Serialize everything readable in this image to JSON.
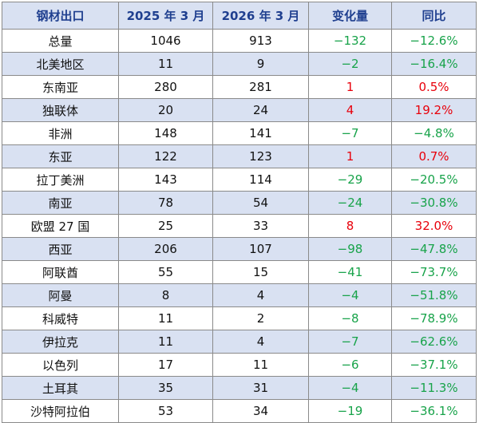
{
  "headers": [
    "钢材出口",
    "2025 年 3 月",
    "2026 年 3 月",
    "变化量",
    "同比"
  ],
  "colors": {
    "header_bg": "#d9e1f2",
    "header_text": "#1f3f8f",
    "alt_row_bg": "#d9e1f2",
    "increase": "#e8000b",
    "decrease": "#18a34a"
  },
  "rows": [
    {
      "region": "总量",
      "mar_2025": "1046",
      "mar_2026": "913",
      "change": "−132",
      "yoy": "−12.6%",
      "trend": "neg"
    },
    {
      "region": "北美地区",
      "mar_2025": "11",
      "mar_2026": "9",
      "change": "−2",
      "yoy": "−16.4%",
      "trend": "neg"
    },
    {
      "region": "东南亚",
      "mar_2025": "280",
      "mar_2026": "281",
      "change": "1",
      "yoy": "0.5%",
      "trend": "pos"
    },
    {
      "region": "独联体",
      "mar_2025": "20",
      "mar_2026": "24",
      "change": "4",
      "yoy": "19.2%",
      "trend": "pos"
    },
    {
      "region": "非洲",
      "mar_2025": "148",
      "mar_2026": "141",
      "change": "−7",
      "yoy": "−4.8%",
      "trend": "neg"
    },
    {
      "region": "东亚",
      "mar_2025": "122",
      "mar_2026": "123",
      "change": "1",
      "yoy": "0.7%",
      "trend": "pos"
    },
    {
      "region": "拉丁美洲",
      "mar_2025": "143",
      "mar_2026": "114",
      "change": "−29",
      "yoy": "−20.5%",
      "trend": "neg"
    },
    {
      "region": "南亚",
      "mar_2025": "78",
      "mar_2026": "54",
      "change": "−24",
      "yoy": "−30.8%",
      "trend": "neg"
    },
    {
      "region": "欧盟 27 国",
      "mar_2025": "25",
      "mar_2026": "33",
      "change": "8",
      "yoy": "32.0%",
      "trend": "pos"
    },
    {
      "region": "西亚",
      "mar_2025": "206",
      "mar_2026": "107",
      "change": "−98",
      "yoy": "−47.8%",
      "trend": "neg"
    },
    {
      "region": "阿联酋",
      "mar_2025": "55",
      "mar_2026": "15",
      "change": "−41",
      "yoy": "−73.7%",
      "trend": "neg"
    },
    {
      "region": "阿曼",
      "mar_2025": "8",
      "mar_2026": "4",
      "change": "−4",
      "yoy": "−51.8%",
      "trend": "neg"
    },
    {
      "region": "科威特",
      "mar_2025": "11",
      "mar_2026": "2",
      "change": "−8",
      "yoy": "−78.9%",
      "trend": "neg"
    },
    {
      "region": "伊拉克",
      "mar_2025": "11",
      "mar_2026": "4",
      "change": "−7",
      "yoy": "−62.6%",
      "trend": "neg"
    },
    {
      "region": "以色列",
      "mar_2025": "17",
      "mar_2026": "11",
      "change": "−6",
      "yoy": "−37.1%",
      "trend": "neg"
    },
    {
      "region": "土耳其",
      "mar_2025": "35",
      "mar_2026": "31",
      "change": "−4",
      "yoy": "−11.3%",
      "trend": "neg"
    },
    {
      "region": "沙特阿拉伯",
      "mar_2025": "53",
      "mar_2026": "34",
      "change": "−19",
      "yoy": "−36.1%",
      "trend": "neg"
    }
  ]
}
